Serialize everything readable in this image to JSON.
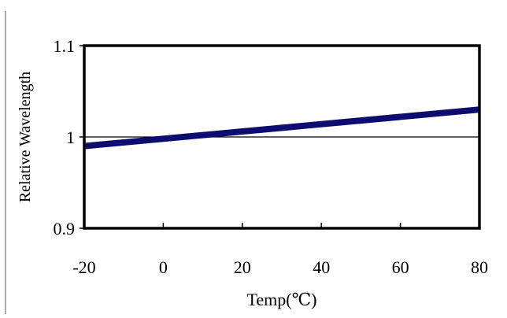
{
  "chart_data": {
    "type": "line",
    "title": "",
    "xlabel": "Temp(℃)",
    "ylabel": "Relative Wavelength",
    "xlim": [
      -20,
      80
    ],
    "ylim": [
      0.9,
      1.1
    ],
    "x_ticks": [
      -20,
      0,
      20,
      40,
      60,
      80
    ],
    "x_tick_labels": [
      "-20",
      "0",
      "20",
      "40",
      "60",
      "80"
    ],
    "y_ticks": [
      0.9,
      1.0,
      1.1
    ],
    "y_tick_labels": [
      "0.9",
      "1",
      "1.1"
    ],
    "grid": false,
    "reference_line_y": 1.0,
    "series": [
      {
        "color": "#0d0d70",
        "x": [
          -20,
          80
        ],
        "y": [
          0.99,
          1.03
        ]
      }
    ]
  }
}
